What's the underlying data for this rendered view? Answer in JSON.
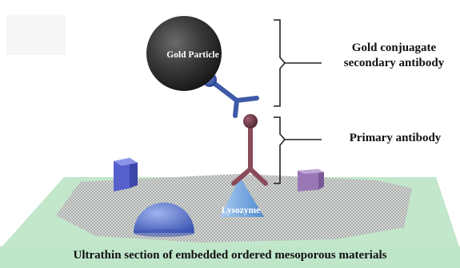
{
  "labels": {
    "gold_conjugate_line1": "Gold conjuagate",
    "gold_conjugate_line2": "secondary antibody",
    "primary_antibody": "Primary antibody",
    "gold_particle": "Gold Particle",
    "lysozyme": "Lysozyme",
    "bottom_caption": "Ultrathin section of embedded ordered mesoporous materials"
  },
  "colors": {
    "gold_particle": "#3a3a3a",
    "secondary_antibody": "#3e5aa8",
    "primary_antibody": "#8a4a5a",
    "lysozyme": "#6fa3d8",
    "substrate": "#bfe6c9",
    "mesh": "#7a7a7a",
    "dome": "#5b74c9",
    "cube_left": "#6670d6",
    "cube_right": "#a07ab8"
  }
}
